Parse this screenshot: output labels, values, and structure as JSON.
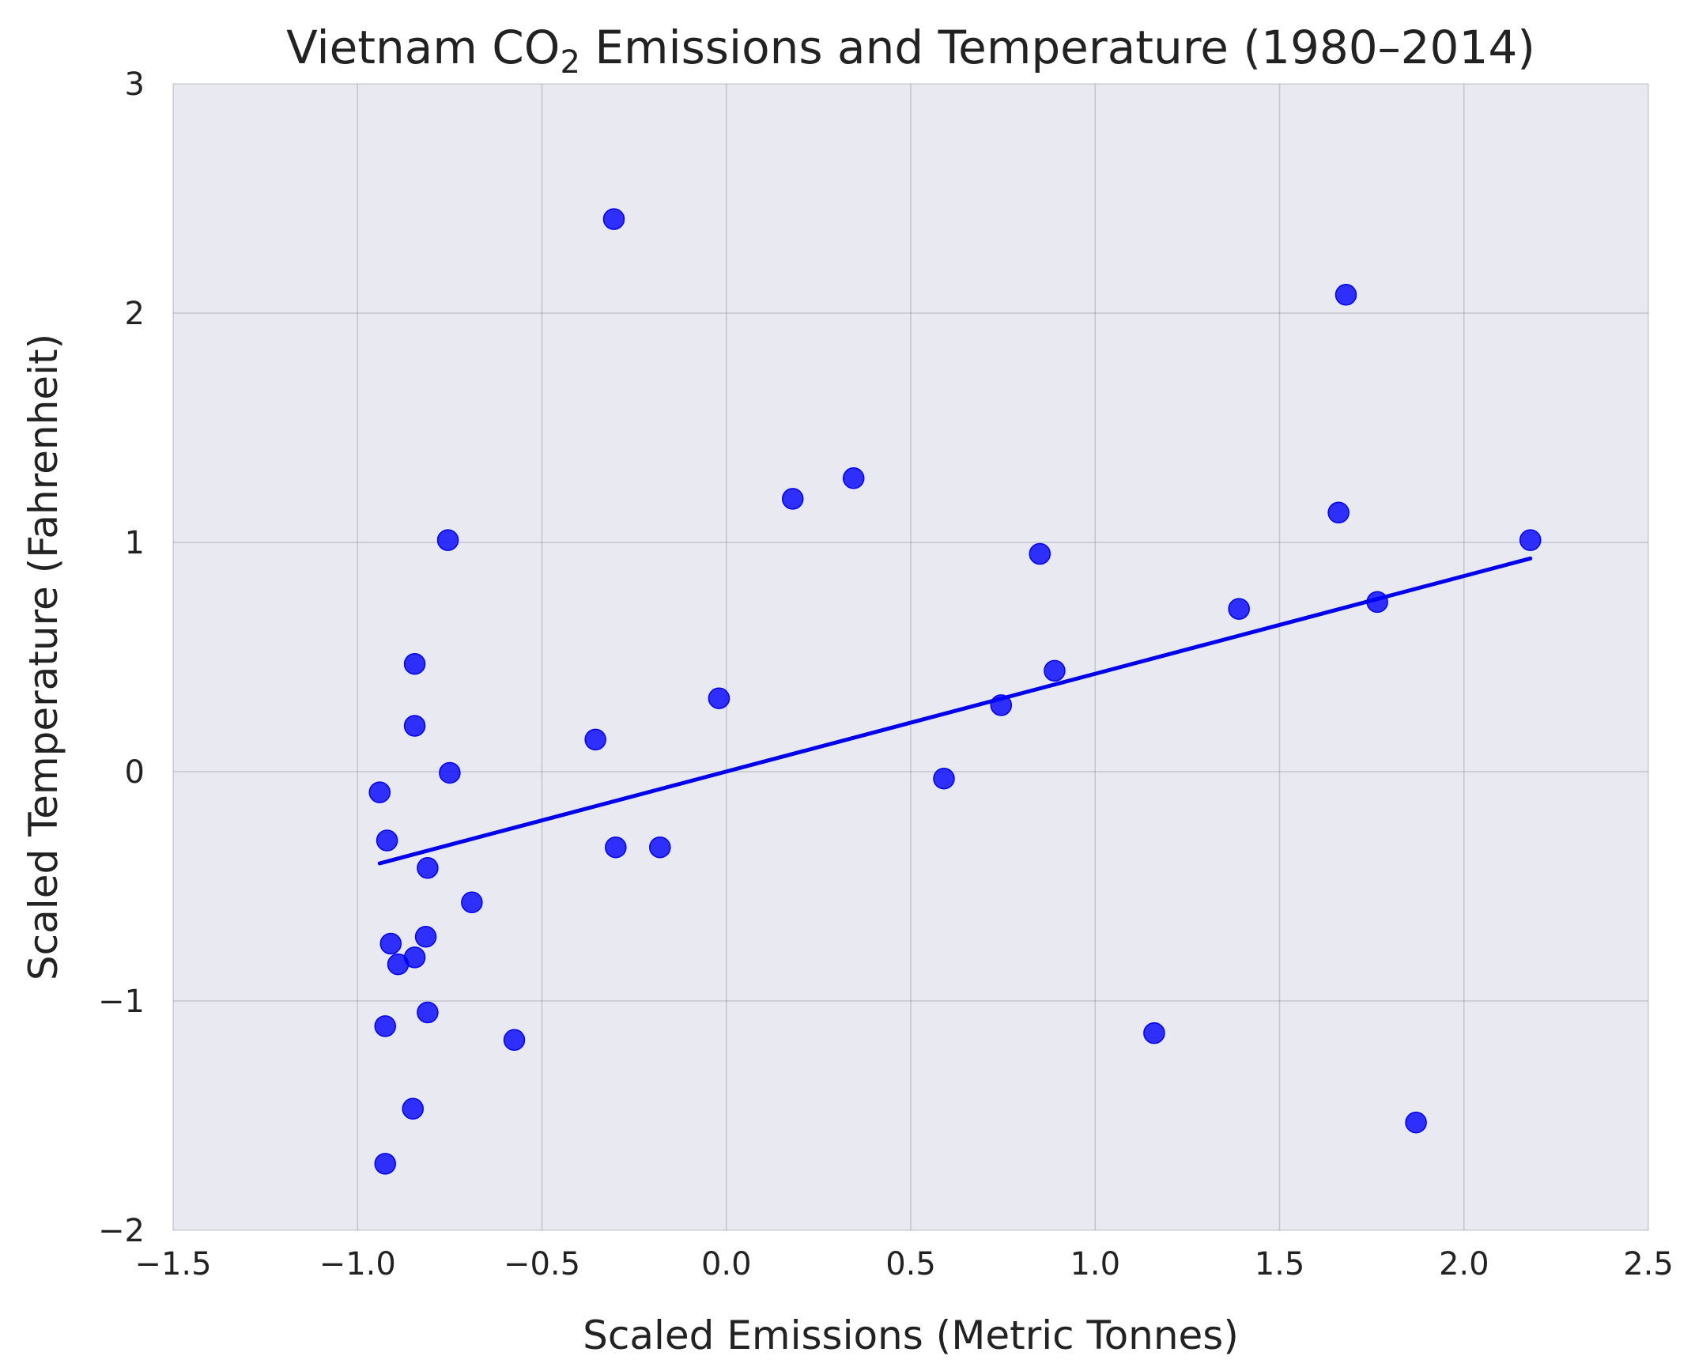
{
  "chart_data": {
    "type": "scatter",
    "title": {
      "pre": "Vietnam CO",
      "sub": "2",
      "post": " Emissions and Temperature (1980–2014)"
    },
    "xlabel": "Scaled Emissions (Metric Tonnes)",
    "ylabel": "Scaled Temperature (Fahrenheit)",
    "xlim": [
      -1.5,
      2.5
    ],
    "ylim": [
      -2,
      3
    ],
    "xticks": [
      -1.5,
      -1.0,
      -0.5,
      0.0,
      0.5,
      1.0,
      1.5,
      2.0,
      2.5
    ],
    "xtick_labels": [
      "−1.5",
      "−1.0",
      "−0.5",
      "0.0",
      "0.5",
      "1.0",
      "1.5",
      "2.0",
      "2.5"
    ],
    "yticks": [
      -2,
      -1,
      0,
      1,
      2,
      3
    ],
    "ytick_labels": [
      "−2",
      "−1",
      "0",
      "1",
      "2",
      "3"
    ],
    "grid": true,
    "series": [
      {
        "color": "#0000ff",
        "points": [
          {
            "x": -0.94,
            "y": -0.09
          },
          {
            "x": -0.92,
            "y": -0.3
          },
          {
            "x": -0.925,
            "y": -1.11
          },
          {
            "x": -0.925,
            "y": -1.71
          },
          {
            "x": -0.91,
            "y": -0.75
          },
          {
            "x": -0.89,
            "y": -0.84
          },
          {
            "x": -0.845,
            "y": 0.47
          },
          {
            "x": -0.845,
            "y": 0.2
          },
          {
            "x": -0.845,
            "y": -0.81
          },
          {
            "x": -0.85,
            "y": -1.47
          },
          {
            "x": -0.815,
            "y": -0.72
          },
          {
            "x": -0.81,
            "y": -0.42
          },
          {
            "x": -0.81,
            "y": -1.05
          },
          {
            "x": -0.755,
            "y": 1.01
          },
          {
            "x": -0.75,
            "y": -0.005
          },
          {
            "x": -0.69,
            "y": -0.57
          },
          {
            "x": -0.575,
            "y": -1.17
          },
          {
            "x": -0.355,
            "y": 0.14
          },
          {
            "x": -0.305,
            "y": 2.41
          },
          {
            "x": -0.3,
            "y": -0.33
          },
          {
            "x": -0.18,
            "y": -0.33
          },
          {
            "x": -0.02,
            "y": 0.32
          },
          {
            "x": 0.18,
            "y": 1.19
          },
          {
            "x": 0.345,
            "y": 1.28
          },
          {
            "x": 0.59,
            "y": -0.03
          },
          {
            "x": 0.745,
            "y": 0.29
          },
          {
            "x": 0.85,
            "y": 0.95
          },
          {
            "x": 0.89,
            "y": 0.44
          },
          {
            "x": 1.16,
            "y": -1.14
          },
          {
            "x": 1.39,
            "y": 0.71
          },
          {
            "x": 1.66,
            "y": 1.13
          },
          {
            "x": 1.68,
            "y": 2.08
          },
          {
            "x": 1.765,
            "y": 0.74
          },
          {
            "x": 1.87,
            "y": -1.53
          },
          {
            "x": 2.18,
            "y": 1.01
          }
        ]
      }
    ],
    "trendline": {
      "color": "#0000ee",
      "x": [
        -0.94,
        2.18
      ],
      "y": [
        -0.4,
        0.93
      ]
    }
  }
}
